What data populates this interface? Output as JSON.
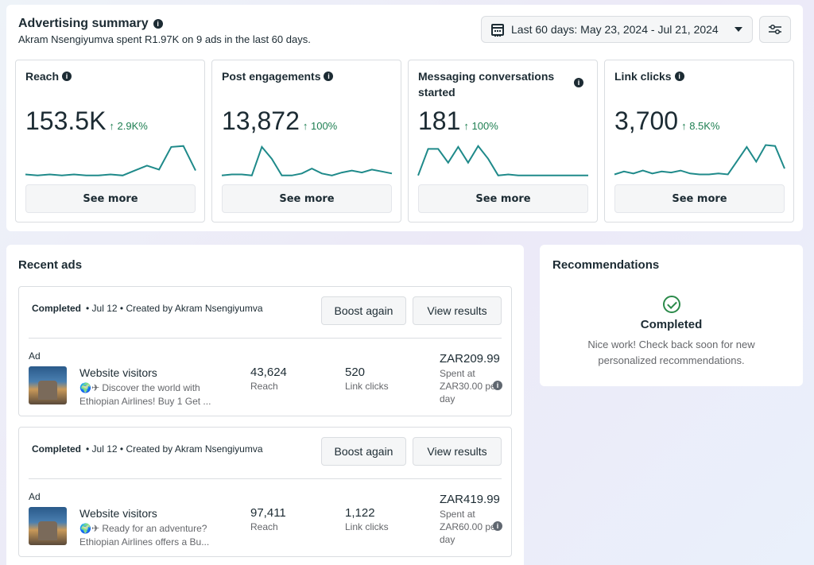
{
  "summary": {
    "title": "Advertising summary",
    "subtitle": "Akram Nsengiyumva spent R1.97K on 9 ads in the last 60 days.",
    "date_range": "Last 60 days: May 23, 2024 - Jul 21, 2024"
  },
  "metrics": [
    {
      "label": "Reach",
      "value": "153.5K",
      "delta": "↑ 2.9K%",
      "see_more": "See more",
      "trend": [
        2,
        1,
        2,
        1,
        2,
        1,
        1,
        2,
        1,
        6,
        11,
        7,
        30,
        31,
        6
      ]
    },
    {
      "label": "Post engagements",
      "value": "13,872",
      "delta": "↑ 100%",
      "see_more": "See more",
      "trend": [
        1,
        2,
        2,
        1,
        30,
        18,
        1,
        1,
        3,
        8,
        3,
        1,
        4,
        6,
        4,
        7,
        5,
        3
      ]
    },
    {
      "label": "Messaging conversations started",
      "value": "181",
      "delta": "↑ 100%",
      "see_more": "See more",
      "trend": [
        1,
        28,
        28,
        14,
        30,
        14,
        31,
        18,
        1,
        2,
        1,
        1,
        1,
        1,
        1,
        1,
        1,
        1
      ]
    },
    {
      "label": "Link clicks",
      "value": "3,700",
      "delta": "↑ 8.5K%",
      "see_more": "See more",
      "trend": [
        2,
        5,
        3,
        6,
        3,
        5,
        4,
        6,
        3,
        2,
        2,
        3,
        2,
        16,
        30,
        15,
        32,
        31,
        8
      ]
    }
  ],
  "recent": {
    "title": "Recent ads",
    "ads": [
      {
        "status": "Completed",
        "meta": "• Jul 12 • Created by Akram Nsengiyumva",
        "boost": "Boost again",
        "view": "View results",
        "tag": "Ad",
        "name": "Website visitors",
        "desc": "🌍✈ Discover the world with Ethiopian Airlines! Buy 1 Get ...",
        "reach_val": "43,624",
        "reach_lbl": "Reach",
        "clicks_val": "520",
        "clicks_lbl": "Link clicks",
        "amount": "ZAR209.99",
        "spent": "Spent at ZAR30.00 per day"
      },
      {
        "status": "Completed",
        "meta": "• Jul 12 • Created by Akram Nsengiyumva",
        "boost": "Boost again",
        "view": "View results",
        "tag": "Ad",
        "name": "Website visitors",
        "desc": "🌍✈ Ready for an adventure? Ethiopian Airlines offers a Bu...",
        "reach_val": "97,411",
        "reach_lbl": "Reach",
        "clicks_val": "1,122",
        "clicks_lbl": "Link clicks",
        "amount": "ZAR419.99",
        "spent": "Spent at ZAR60.00 per day"
      }
    ]
  },
  "recommendations": {
    "title": "Recommendations",
    "status": "Completed",
    "message": "Nice work! Check back soon for new personalized recommendations."
  },
  "colors": {
    "trend_line": "#1f8a8a",
    "delta_up": "#1e7f52"
  }
}
